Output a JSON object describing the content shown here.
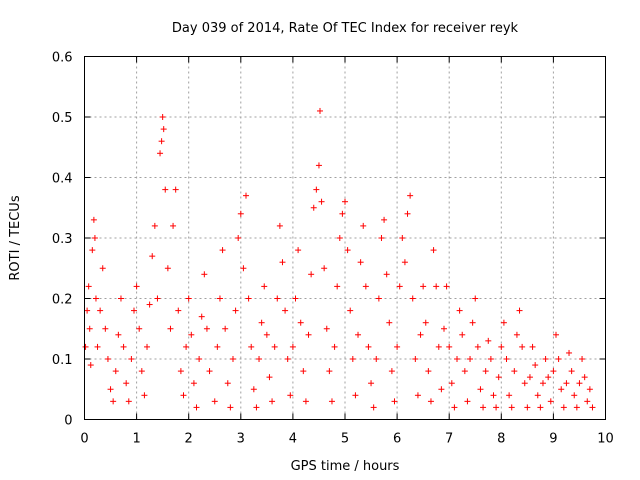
{
  "chart_data": {
    "type": "scatter",
    "title": "Day 039 of 2014, Rate Of TEC Index for receiver reyk",
    "xlabel": "GPS time / hours",
    "ylabel": "ROTI / TECUs",
    "xlim": [
      0,
      10
    ],
    "ylim": [
      0,
      0.6
    ],
    "grid": true,
    "marker": "+",
    "color": "#ff0000",
    "x_ticks": [
      0,
      1,
      2,
      3,
      4,
      5,
      6,
      7,
      8,
      9,
      10
    ],
    "x_tick_labels": [
      "0",
      "1",
      "2",
      "3",
      "4",
      "5",
      "6",
      "7",
      "8",
      "9",
      "10"
    ],
    "y_ticks": [
      0,
      0.1,
      0.2,
      0.3,
      0.4,
      0.5,
      0.6
    ],
    "y_tick_labels": [
      "0",
      "0.1",
      "0.2",
      "0.3",
      "0.4",
      "0.5",
      "0.6"
    ],
    "series": [
      {
        "name": "ROTI",
        "points": [
          [
            0.02,
            0.12
          ],
          [
            0.05,
            0.18
          ],
          [
            0.08,
            0.22
          ],
          [
            0.1,
            0.15
          ],
          [
            0.12,
            0.09
          ],
          [
            0.15,
            0.28
          ],
          [
            0.18,
            0.33
          ],
          [
            0.2,
            0.3
          ],
          [
            0.22,
            0.2
          ],
          [
            0.25,
            0.12
          ],
          [
            0.3,
            0.18
          ],
          [
            0.35,
            0.25
          ],
          [
            0.4,
            0.15
          ],
          [
            0.45,
            0.1
          ],
          [
            0.5,
            0.05
          ],
          [
            0.55,
            0.03
          ],
          [
            0.6,
            0.08
          ],
          [
            0.65,
            0.14
          ],
          [
            0.7,
            0.2
          ],
          [
            0.75,
            0.12
          ],
          [
            0.8,
            0.06
          ],
          [
            0.85,
            0.03
          ],
          [
            0.9,
            0.1
          ],
          [
            0.95,
            0.18
          ],
          [
            1.0,
            0.22
          ],
          [
            1.05,
            0.15
          ],
          [
            1.1,
            0.08
          ],
          [
            1.15,
            0.04
          ],
          [
            1.2,
            0.12
          ],
          [
            1.25,
            0.19
          ],
          [
            1.3,
            0.27
          ],
          [
            1.35,
            0.32
          ],
          [
            1.4,
            0.2
          ],
          [
            1.45,
            0.44
          ],
          [
            1.48,
            0.46
          ],
          [
            1.5,
            0.5
          ],
          [
            1.52,
            0.48
          ],
          [
            1.55,
            0.38
          ],
          [
            1.6,
            0.25
          ],
          [
            1.65,
            0.15
          ],
          [
            1.7,
            0.32
          ],
          [
            1.75,
            0.38
          ],
          [
            1.8,
            0.18
          ],
          [
            1.85,
            0.08
          ],
          [
            1.9,
            0.04
          ],
          [
            1.95,
            0.12
          ],
          [
            2.0,
            0.2
          ],
          [
            2.05,
            0.14
          ],
          [
            2.1,
            0.06
          ],
          [
            2.15,
            0.02
          ],
          [
            2.2,
            0.1
          ],
          [
            2.25,
            0.17
          ],
          [
            2.3,
            0.24
          ],
          [
            2.35,
            0.15
          ],
          [
            2.4,
            0.08
          ],
          [
            2.5,
            0.03
          ],
          [
            2.55,
            0.12
          ],
          [
            2.6,
            0.2
          ],
          [
            2.65,
            0.28
          ],
          [
            2.7,
            0.15
          ],
          [
            2.75,
            0.06
          ],
          [
            2.8,
            0.02
          ],
          [
            2.85,
            0.1
          ],
          [
            2.9,
            0.18
          ],
          [
            2.95,
            0.3
          ],
          [
            3.0,
            0.34
          ],
          [
            3.05,
            0.25
          ],
          [
            3.1,
            0.37
          ],
          [
            3.15,
            0.2
          ],
          [
            3.2,
            0.12
          ],
          [
            3.25,
            0.05
          ],
          [
            3.3,
            0.02
          ],
          [
            3.35,
            0.1
          ],
          [
            3.4,
            0.16
          ],
          [
            3.45,
            0.22
          ],
          [
            3.5,
            0.14
          ],
          [
            3.55,
            0.07
          ],
          [
            3.6,
            0.03
          ],
          [
            3.65,
            0.12
          ],
          [
            3.7,
            0.2
          ],
          [
            3.75,
            0.32
          ],
          [
            3.8,
            0.26
          ],
          [
            3.85,
            0.18
          ],
          [
            3.9,
            0.1
          ],
          [
            3.95,
            0.04
          ],
          [
            4.0,
            0.12
          ],
          [
            4.05,
            0.2
          ],
          [
            4.1,
            0.28
          ],
          [
            4.15,
            0.16
          ],
          [
            4.2,
            0.08
          ],
          [
            4.25,
            0.03
          ],
          [
            4.3,
            0.14
          ],
          [
            4.35,
            0.24
          ],
          [
            4.4,
            0.35
          ],
          [
            4.45,
            0.38
          ],
          [
            4.5,
            0.42
          ],
          [
            4.52,
            0.51
          ],
          [
            4.55,
            0.36
          ],
          [
            4.6,
            0.25
          ],
          [
            4.65,
            0.15
          ],
          [
            4.7,
            0.08
          ],
          [
            4.75,
            0.03
          ],
          [
            4.8,
            0.12
          ],
          [
            4.85,
            0.22
          ],
          [
            4.9,
            0.3
          ],
          [
            4.95,
            0.34
          ],
          [
            5.0,
            0.36
          ],
          [
            5.05,
            0.28
          ],
          [
            5.1,
            0.18
          ],
          [
            5.15,
            0.1
          ],
          [
            5.2,
            0.04
          ],
          [
            5.25,
            0.14
          ],
          [
            5.3,
            0.26
          ],
          [
            5.35,
            0.32
          ],
          [
            5.4,
            0.22
          ],
          [
            5.45,
            0.12
          ],
          [
            5.5,
            0.06
          ],
          [
            5.55,
            0.02
          ],
          [
            5.6,
            0.1
          ],
          [
            5.65,
            0.2
          ],
          [
            5.7,
            0.3
          ],
          [
            5.75,
            0.33
          ],
          [
            5.8,
            0.24
          ],
          [
            5.85,
            0.16
          ],
          [
            5.9,
            0.08
          ],
          [
            5.95,
            0.03
          ],
          [
            6.0,
            0.12
          ],
          [
            6.05,
            0.22
          ],
          [
            6.1,
            0.3
          ],
          [
            6.15,
            0.26
          ],
          [
            6.2,
            0.34
          ],
          [
            6.25,
            0.37
          ],
          [
            6.3,
            0.2
          ],
          [
            6.35,
            0.1
          ],
          [
            6.4,
            0.04
          ],
          [
            6.45,
            0.14
          ],
          [
            6.5,
            0.22
          ],
          [
            6.55,
            0.16
          ],
          [
            6.6,
            0.08
          ],
          [
            6.65,
            0.03
          ],
          [
            6.7,
            0.28
          ],
          [
            6.75,
            0.22
          ],
          [
            6.8,
            0.12
          ],
          [
            6.85,
            0.05
          ],
          [
            6.9,
            0.15
          ],
          [
            6.95,
            0.22
          ],
          [
            7.0,
            0.12
          ],
          [
            7.05,
            0.06
          ],
          [
            7.1,
            0.02
          ],
          [
            7.15,
            0.1
          ],
          [
            7.2,
            0.18
          ],
          [
            7.25,
            0.14
          ],
          [
            7.3,
            0.08
          ],
          [
            7.35,
            0.03
          ],
          [
            7.4,
            0.1
          ],
          [
            7.45,
            0.16
          ],
          [
            7.5,
            0.2
          ],
          [
            7.55,
            0.12
          ],
          [
            7.6,
            0.05
          ],
          [
            7.65,
            0.02
          ],
          [
            7.7,
            0.08
          ],
          [
            7.75,
            0.13
          ],
          [
            7.8,
            0.1
          ],
          [
            7.85,
            0.04
          ],
          [
            7.9,
            0.02
          ],
          [
            7.95,
            0.07
          ],
          [
            8.0,
            0.12
          ],
          [
            8.05,
            0.16
          ],
          [
            8.1,
            0.1
          ],
          [
            8.15,
            0.04
          ],
          [
            8.2,
            0.02
          ],
          [
            8.25,
            0.08
          ],
          [
            8.3,
            0.14
          ],
          [
            8.35,
            0.18
          ],
          [
            8.4,
            0.12
          ],
          [
            8.45,
            0.06
          ],
          [
            8.5,
            0.02
          ],
          [
            8.55,
            0.07
          ],
          [
            8.6,
            0.12
          ],
          [
            8.65,
            0.09
          ],
          [
            8.7,
            0.04
          ],
          [
            8.75,
            0.02
          ],
          [
            8.8,
            0.06
          ],
          [
            8.85,
            0.1
          ],
          [
            8.9,
            0.07
          ],
          [
            8.95,
            0.03
          ],
          [
            9.0,
            0.08
          ],
          [
            9.05,
            0.14
          ],
          [
            9.1,
            0.1
          ],
          [
            9.15,
            0.05
          ],
          [
            9.2,
            0.02
          ],
          [
            9.25,
            0.06
          ],
          [
            9.3,
            0.11
          ],
          [
            9.35,
            0.08
          ],
          [
            9.4,
            0.04
          ],
          [
            9.45,
            0.02
          ],
          [
            9.5,
            0.06
          ],
          [
            9.55,
            0.1
          ],
          [
            9.6,
            0.07
          ],
          [
            9.65,
            0.03
          ],
          [
            9.7,
            0.05
          ],
          [
            9.75,
            0.02
          ]
        ]
      }
    ]
  }
}
